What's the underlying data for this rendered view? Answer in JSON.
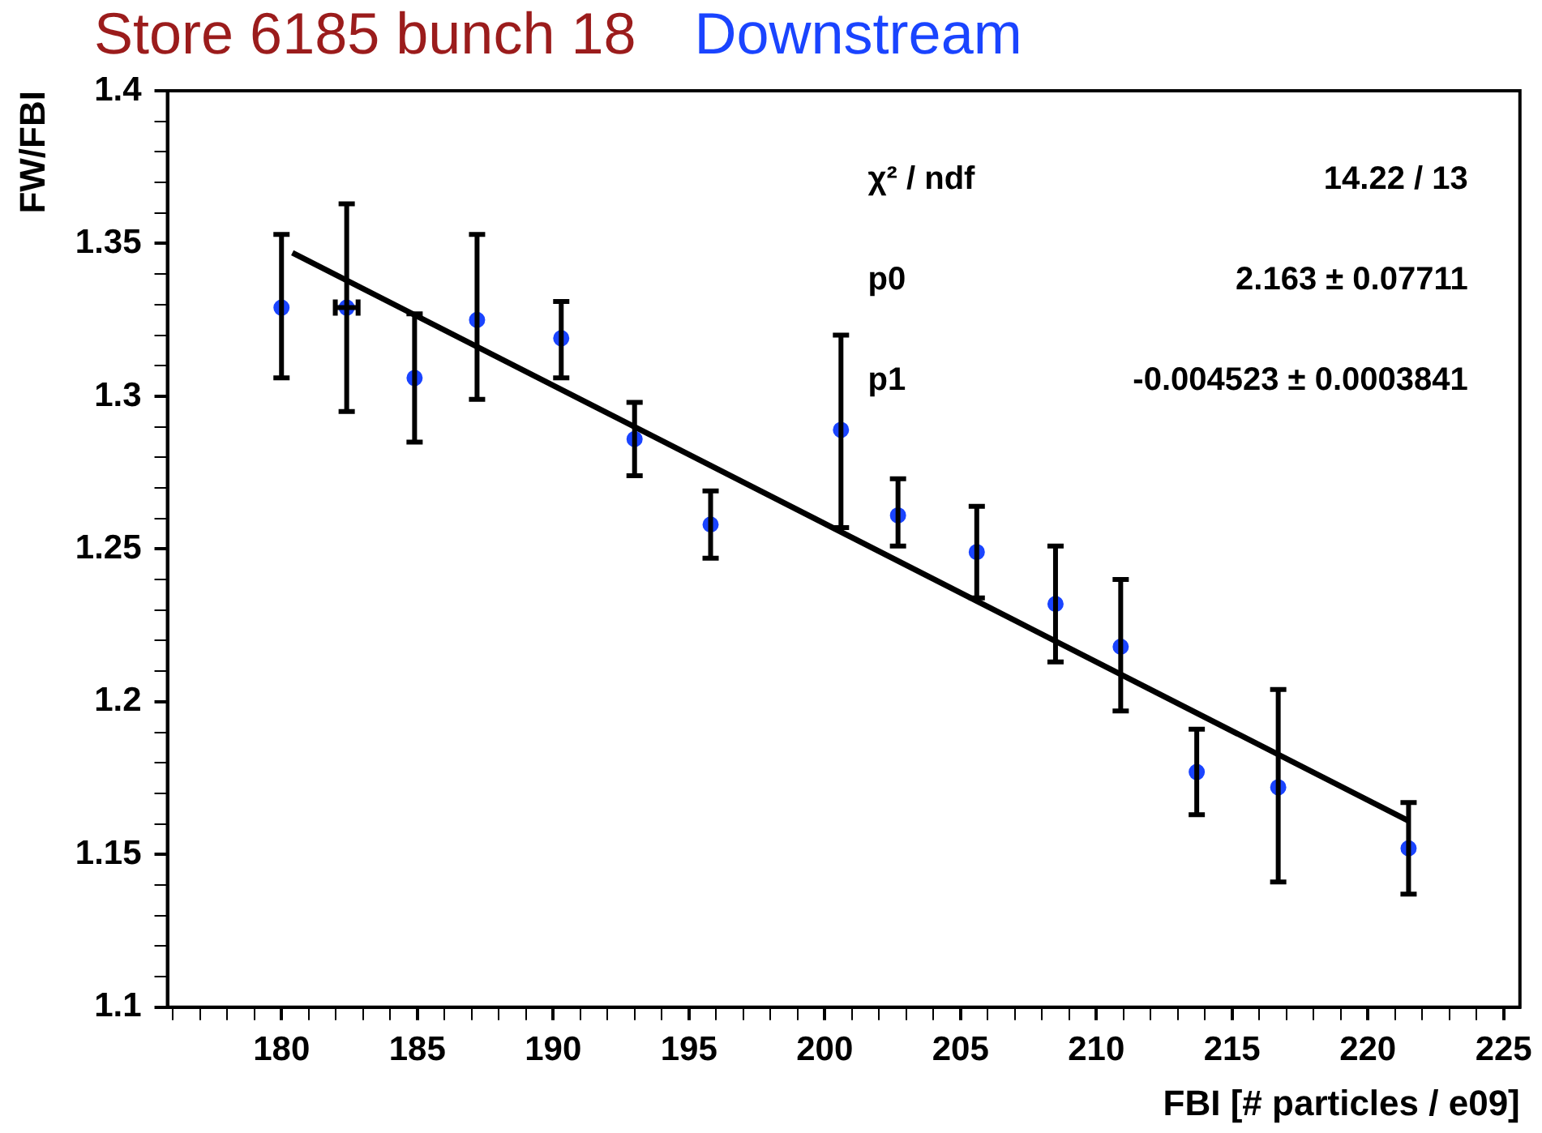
{
  "chart_data": {
    "type": "scatter",
    "title": "Store 6185 bunch 18",
    "subtitle": "Downstream",
    "xlabel": "FBI [# particles / e09]",
    "ylabel": "FW/FBI",
    "annotations": [
      "χ² / ndf",
      "14.22 / 13",
      "p0",
      "2.163 ± 0.07711",
      "p1",
      "-0.004523 ± 0.0003841"
    ],
    "xlim": [
      175.8,
      225.6
    ],
    "ylim": [
      1.1,
      1.4
    ],
    "xticks": [
      {
        "value": 176,
        "label": null
      },
      {
        "value": 177,
        "label": null
      },
      {
        "value": 178,
        "label": null
      },
      {
        "value": 179,
        "label": null
      },
      180,
      {
        "value": 181,
        "label": null
      },
      {
        "value": 182,
        "label": null
      },
      {
        "value": 183,
        "label": null
      },
      {
        "value": 184,
        "label": null
      },
      185,
      {
        "value": 186,
        "label": null
      },
      {
        "value": 187,
        "label": null
      },
      {
        "value": 188,
        "label": null
      },
      {
        "value": 189,
        "label": null
      },
      190,
      {
        "value": 191,
        "label": null
      },
      {
        "value": 192,
        "label": null
      },
      {
        "value": 193,
        "label": null
      },
      {
        "value": 194,
        "label": null
      },
      195,
      {
        "value": 196,
        "label": null
      },
      {
        "value": 197,
        "label": null
      },
      {
        "value": 198,
        "label": null
      },
      {
        "value": 199,
        "label": null
      },
      200,
      {
        "value": 201,
        "label": null
      },
      {
        "value": 202,
        "label": null
      },
      {
        "value": 203,
        "label": null
      },
      {
        "value": 204,
        "label": null
      },
      205,
      {
        "value": 206,
        "label": null
      },
      {
        "value": 207,
        "label": null
      },
      {
        "value": 208,
        "label": null
      },
      {
        "value": 209,
        "label": null
      },
      210,
      {
        "value": 211,
        "label": null
      },
      {
        "value": 212,
        "label": null
      },
      {
        "value": 213,
        "label": null
      },
      {
        "value": 214,
        "label": null
      },
      215,
      {
        "value": 216,
        "label": null
      },
      {
        "value": 217,
        "label": null
      },
      {
        "value": 218,
        "label": null
      },
      {
        "value": 219,
        "label": null
      },
      220,
      {
        "value": 221,
        "label": null
      },
      {
        "value": 222,
        "label": null
      },
      {
        "value": 223,
        "label": null
      },
      {
        "value": 224,
        "label": null
      },
      225
    ],
    "yticks": [
      1.1,
      {
        "value": 1.11,
        "label": null
      },
      {
        "value": 1.12,
        "label": null
      },
      {
        "value": 1.13,
        "label": null
      },
      {
        "value": 1.14,
        "label": null
      },
      1.15,
      {
        "value": 1.16,
        "label": null
      },
      {
        "value": 1.17,
        "label": null
      },
      {
        "value": 1.18,
        "label": null
      },
      {
        "value": 1.19,
        "label": null
      },
      1.2,
      {
        "value": 1.21,
        "label": null
      },
      {
        "value": 1.22,
        "label": null
      },
      {
        "value": 1.23,
        "label": null
      },
      {
        "value": 1.24,
        "label": null
      },
      1.25,
      {
        "value": 1.26,
        "label": null
      },
      {
        "value": 1.27,
        "label": null
      },
      {
        "value": 1.28,
        "label": null
      },
      {
        "value": 1.29,
        "label": null
      },
      1.3,
      {
        "value": 1.31,
        "label": null
      },
      {
        "value": 1.32,
        "label": null
      },
      {
        "value": 1.33,
        "label": null
      },
      {
        "value": 1.34,
        "label": null
      },
      1.35,
      {
        "value": 1.36,
        "label": null
      },
      {
        "value": 1.37,
        "label": null
      },
      {
        "value": 1.38,
        "label": null
      },
      {
        "value": 1.39,
        "label": null
      },
      1.4
    ],
    "series": [
      {
        "color": "#1a44ff",
        "marker": "circle",
        "x": [
          180.0,
          182.4,
          184.9,
          187.2,
          190.3,
          193.0,
          195.8,
          200.6,
          202.7,
          205.6,
          208.5,
          210.9,
          213.7,
          216.7,
          221.5
        ],
        "values": [
          1.329,
          1.329,
          1.306,
          1.325,
          1.319,
          1.286,
          1.258,
          1.289,
          1.261,
          1.249,
          1.232,
          1.218,
          1.177,
          1.172,
          1.152
        ],
        "errors": [
          [
            1.306,
            1.353
          ],
          [
            1.295,
            1.363
          ],
          [
            1.285,
            1.327
          ],
          [
            1.299,
            1.353
          ],
          [
            1.306,
            1.331
          ],
          [
            1.274,
            1.298
          ],
          [
            1.247,
            1.269
          ],
          [
            1.257,
            1.32
          ],
          [
            1.251,
            1.273
          ],
          [
            1.234,
            1.264
          ],
          [
            1.213,
            1.251
          ],
          [
            1.197,
            1.24
          ],
          [
            1.163,
            1.191
          ],
          [
            1.141,
            1.204
          ],
          [
            1.137,
            1.167
          ]
        ],
        "xerrors": [
          null,
          0.42,
          null,
          null,
          null,
          null,
          null,
          null,
          null,
          null,
          null,
          null,
          null,
          null,
          null
        ]
      },
      {
        "type": "line",
        "color": "#000000",
        "marker": "none",
        "x": [
          180.4,
          221.5
        ],
        "values": [
          1.347,
          1.161
        ]
      }
    ]
  }
}
